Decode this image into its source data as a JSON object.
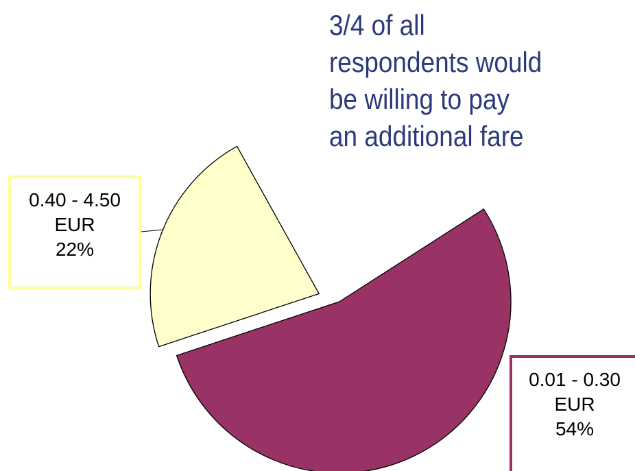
{
  "chart_data": {
    "type": "pie",
    "annotation": "3/4 of all\nrespondents would\nbe willing to pay\nan additional fare",
    "categories": [
      "0.01 - 0.30\nEUR",
      "0.40 - 4.50\nEUR"
    ],
    "values": [
      54,
      22
    ],
    "value_labels": [
      "54%",
      "22%"
    ],
    "colors": [
      "#993366",
      "#ffffcc"
    ],
    "label_borders": [
      "#993366",
      "#ffff99"
    ]
  }
}
